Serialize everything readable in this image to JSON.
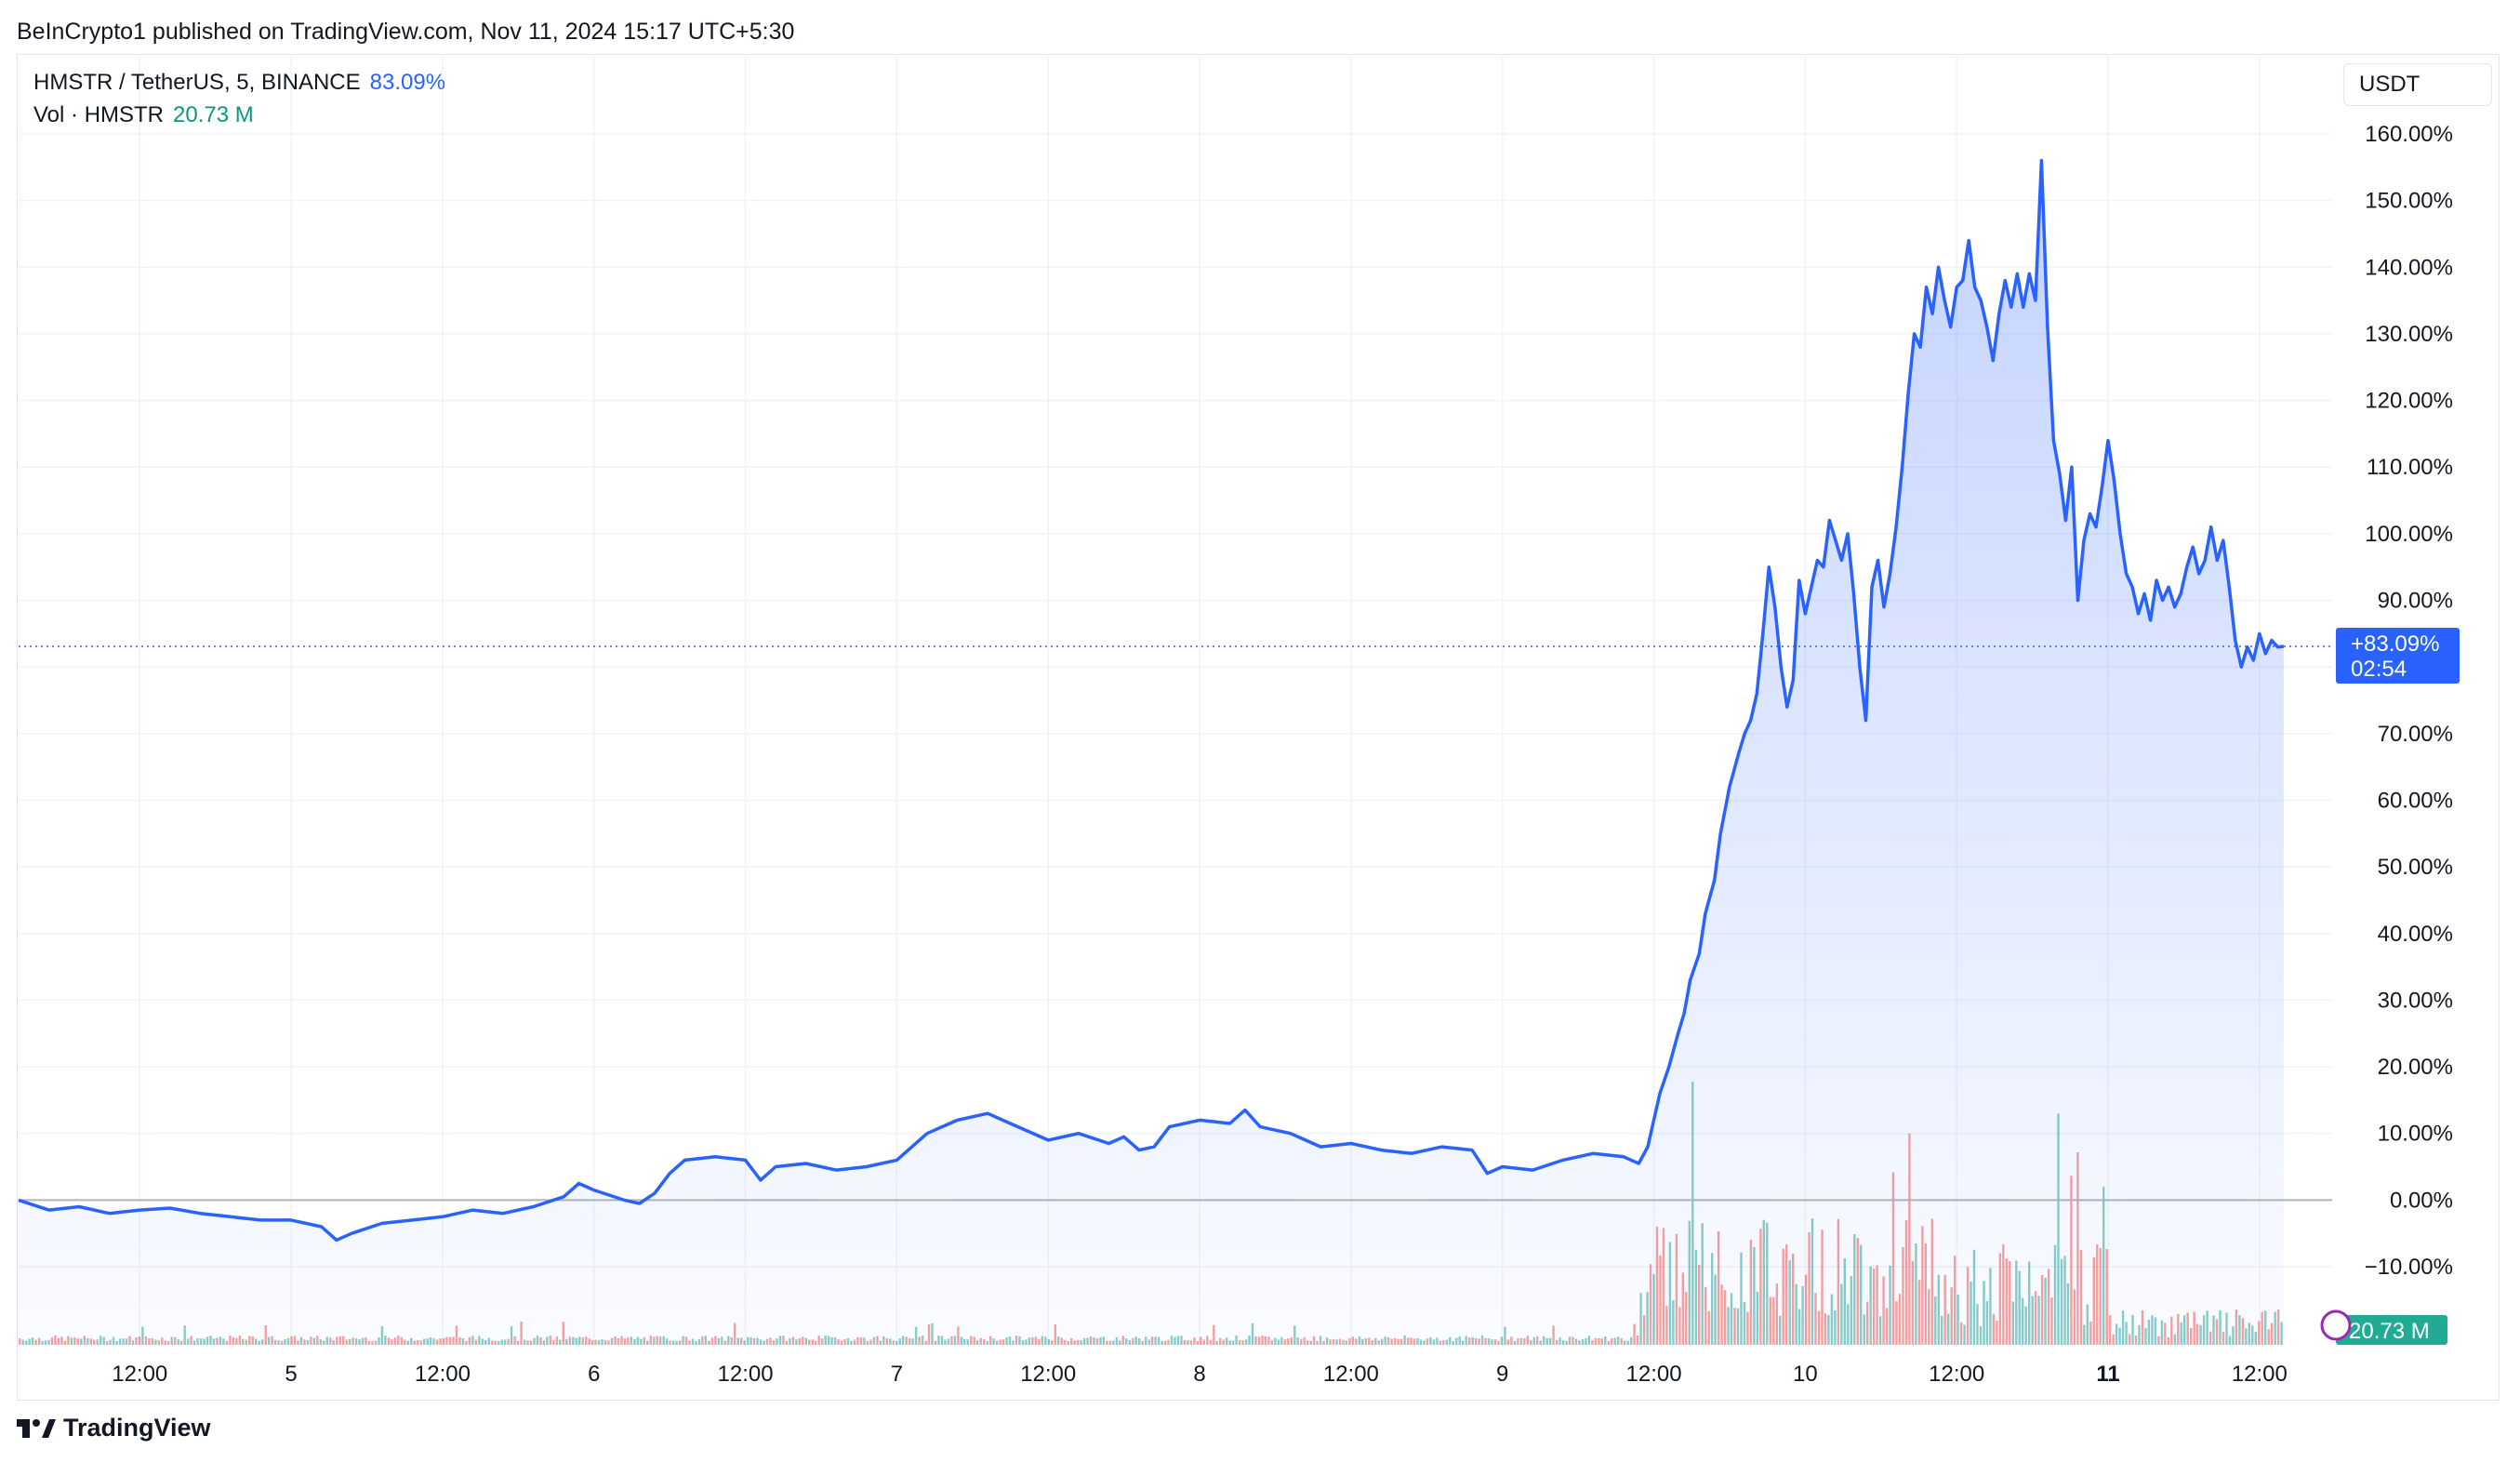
{
  "publisher_line": "BeInCrypto1 published on TradingView.com, Nov 11, 2024 15:17 UTC+5:30",
  "legend": {
    "symbol": "HMSTR / TetherUS, 5, BINANCE",
    "change": "83.09%",
    "vol_label": "Vol · HMSTR",
    "vol_value": "20.73 M"
  },
  "currency_button": "USDT",
  "price_badge": {
    "value": "+83.09%",
    "countdown": "02:54"
  },
  "volume_badge": "20.73 M",
  "brand": "TradingView",
  "colors": {
    "line": "#2962ff",
    "up_volume": "#26a69a",
    "down_volume": "#ef5350",
    "badge_blue": "#2962ff",
    "badge_green": "#22ab94"
  },
  "chart_data": {
    "type": "area",
    "y_unit": "%",
    "ylim": [
      -22,
      172
    ],
    "y_ticks": [
      "160.00%",
      "150.00%",
      "140.00%",
      "130.00%",
      "120.00%",
      "110.00%",
      "100.00%",
      "90.00%",
      "70.00%",
      "60.00%",
      "50.00%",
      "40.00%",
      "30.00%",
      "20.00%",
      "10.00%",
      "0.00%",
      "−10.00%"
    ],
    "y_tick_values": [
      160,
      150,
      140,
      130,
      120,
      110,
      100,
      90,
      70,
      60,
      50,
      40,
      30,
      20,
      10,
      0,
      -10
    ],
    "x_ticks": [
      {
        "label": "12:00",
        "t": 0.5
      },
      {
        "label": "5",
        "t": 1.0
      },
      {
        "label": "12:00",
        "t": 1.5
      },
      {
        "label": "6",
        "t": 2.0
      },
      {
        "label": "12:00",
        "t": 2.5
      },
      {
        "label": "7",
        "t": 3.0
      },
      {
        "label": "12:00",
        "t": 3.5
      },
      {
        "label": "8",
        "t": 4.0
      },
      {
        "label": "12:00",
        "t": 4.5
      },
      {
        "label": "9",
        "t": 5.0
      },
      {
        "label": "12:00",
        "t": 5.5
      },
      {
        "label": "10",
        "t": 6.0
      },
      {
        "label": "12:00",
        "t": 6.5
      },
      {
        "label": "11",
        "t": 7.0,
        "bold": true
      },
      {
        "label": "12:00",
        "t": 7.5
      }
    ],
    "xlim": [
      0.1,
      7.74
    ],
    "last_value": 83.09,
    "series": [
      {
        "points": [
          [
            0.1,
            0
          ],
          [
            0.2,
            -1.5
          ],
          [
            0.3,
            -1.0
          ],
          [
            0.4,
            -2.0
          ],
          [
            0.5,
            -1.5
          ],
          [
            0.6,
            -1.2
          ],
          [
            0.7,
            -2.0
          ],
          [
            0.8,
            -2.5
          ],
          [
            0.9,
            -3.0
          ],
          [
            1.0,
            -3.0
          ],
          [
            1.1,
            -4.0
          ],
          [
            1.15,
            -6.0
          ],
          [
            1.2,
            -5.0
          ],
          [
            1.3,
            -3.5
          ],
          [
            1.4,
            -3.0
          ],
          [
            1.5,
            -2.5
          ],
          [
            1.6,
            -1.5
          ],
          [
            1.7,
            -2.0
          ],
          [
            1.8,
            -1.0
          ],
          [
            1.9,
            0.5
          ],
          [
            1.95,
            2.5
          ],
          [
            2.0,
            1.5
          ],
          [
            2.1,
            0
          ],
          [
            2.15,
            -0.5
          ],
          [
            2.2,
            1.0
          ],
          [
            2.25,
            4.0
          ],
          [
            2.3,
            6.0
          ],
          [
            2.4,
            6.5
          ],
          [
            2.5,
            6.0
          ],
          [
            2.55,
            3.0
          ],
          [
            2.6,
            5.0
          ],
          [
            2.7,
            5.5
          ],
          [
            2.8,
            4.5
          ],
          [
            2.9,
            5.0
          ],
          [
            3.0,
            6.0
          ],
          [
            3.05,
            8.0
          ],
          [
            3.1,
            10.0
          ],
          [
            3.2,
            12.0
          ],
          [
            3.3,
            13.0
          ],
          [
            3.4,
            11.0
          ],
          [
            3.5,
            9.0
          ],
          [
            3.6,
            10.0
          ],
          [
            3.7,
            8.5
          ],
          [
            3.75,
            9.5
          ],
          [
            3.8,
            7.5
          ],
          [
            3.85,
            8.0
          ],
          [
            3.9,
            11.0
          ],
          [
            4.0,
            12.0
          ],
          [
            4.1,
            11.5
          ],
          [
            4.15,
            13.5
          ],
          [
            4.2,
            11.0
          ],
          [
            4.3,
            10.0
          ],
          [
            4.4,
            8.0
          ],
          [
            4.5,
            8.5
          ],
          [
            4.6,
            7.5
          ],
          [
            4.7,
            7.0
          ],
          [
            4.8,
            8.0
          ],
          [
            4.9,
            7.5
          ],
          [
            4.95,
            4.0
          ],
          [
            5.0,
            5.0
          ],
          [
            5.1,
            4.5
          ],
          [
            5.2,
            6.0
          ],
          [
            5.3,
            7.0
          ],
          [
            5.4,
            6.5
          ],
          [
            5.45,
            5.5
          ],
          [
            5.48,
            8.0
          ],
          [
            5.5,
            12.0
          ],
          [
            5.52,
            16.0
          ],
          [
            5.55,
            20.0
          ],
          [
            5.58,
            25.0
          ],
          [
            5.6,
            28.0
          ],
          [
            5.62,
            33.0
          ],
          [
            5.65,
            37.0
          ],
          [
            5.67,
            43.0
          ],
          [
            5.7,
            48.0
          ],
          [
            5.72,
            55.0
          ],
          [
            5.75,
            62.0
          ],
          [
            5.78,
            67.0
          ],
          [
            5.8,
            70.0
          ],
          [
            5.82,
            72.0
          ],
          [
            5.84,
            76.0
          ],
          [
            5.86,
            85.0
          ],
          [
            5.88,
            95.0
          ],
          [
            5.9,
            89.0
          ],
          [
            5.92,
            80.0
          ],
          [
            5.94,
            74.0
          ],
          [
            5.96,
            78.0
          ],
          [
            5.98,
            93.0
          ],
          [
            6.0,
            88.0
          ],
          [
            6.02,
            92.0
          ],
          [
            6.04,
            96.0
          ],
          [
            6.06,
            95.0
          ],
          [
            6.08,
            102.0
          ],
          [
            6.1,
            99.0
          ],
          [
            6.12,
            96.0
          ],
          [
            6.14,
            100.0
          ],
          [
            6.16,
            91.0
          ],
          [
            6.18,
            80.0
          ],
          [
            6.2,
            72.0
          ],
          [
            6.22,
            92.0
          ],
          [
            6.24,
            96.0
          ],
          [
            6.26,
            89.0
          ],
          [
            6.28,
            94.0
          ],
          [
            6.3,
            101.0
          ],
          [
            6.32,
            110.0
          ],
          [
            6.34,
            121.0
          ],
          [
            6.36,
            130.0
          ],
          [
            6.38,
            128.0
          ],
          [
            6.4,
            137.0
          ],
          [
            6.42,
            133.0
          ],
          [
            6.44,
            140.0
          ],
          [
            6.46,
            135.0
          ],
          [
            6.48,
            131.0
          ],
          [
            6.5,
            137.0
          ],
          [
            6.52,
            138.0
          ],
          [
            6.54,
            144.0
          ],
          [
            6.56,
            137.0
          ],
          [
            6.58,
            135.0
          ],
          [
            6.6,
            131.0
          ],
          [
            6.62,
            126.0
          ],
          [
            6.64,
            133.0
          ],
          [
            6.66,
            138.0
          ],
          [
            6.68,
            134.0
          ],
          [
            6.7,
            139.0
          ],
          [
            6.72,
            134.0
          ],
          [
            6.74,
            139.0
          ],
          [
            6.76,
            135.0
          ],
          [
            6.78,
            156.0
          ],
          [
            6.8,
            131.0
          ],
          [
            6.82,
            114.0
          ],
          [
            6.84,
            109.0
          ],
          [
            6.86,
            102.0
          ],
          [
            6.88,
            110.0
          ],
          [
            6.9,
            90.0
          ],
          [
            6.92,
            99.0
          ],
          [
            6.94,
            103.0
          ],
          [
            6.96,
            101.0
          ],
          [
            6.98,
            107.0
          ],
          [
            7.0,
            114.0
          ],
          [
            7.02,
            108.0
          ],
          [
            7.04,
            100.0
          ],
          [
            7.06,
            94.0
          ],
          [
            7.08,
            92.0
          ],
          [
            7.1,
            88.0
          ],
          [
            7.12,
            91.0
          ],
          [
            7.14,
            87.0
          ],
          [
            7.16,
            93.0
          ],
          [
            7.18,
            90.0
          ],
          [
            7.2,
            92.0
          ],
          [
            7.22,
            89.0
          ],
          [
            7.24,
            91.0
          ],
          [
            7.26,
            95.0
          ],
          [
            7.28,
            98.0
          ],
          [
            7.3,
            94.0
          ],
          [
            7.32,
            96.0
          ],
          [
            7.34,
            101.0
          ],
          [
            7.36,
            96.0
          ],
          [
            7.38,
            99.0
          ],
          [
            7.4,
            92.0
          ],
          [
            7.42,
            84.0
          ],
          [
            7.44,
            80.0
          ],
          [
            7.46,
            83.0
          ],
          [
            7.48,
            81.0
          ],
          [
            7.5,
            85.0
          ],
          [
            7.52,
            82.0
          ],
          [
            7.54,
            84.0
          ],
          [
            7.56,
            83.0
          ],
          [
            7.58,
            83.09
          ]
        ]
      }
    ]
  }
}
